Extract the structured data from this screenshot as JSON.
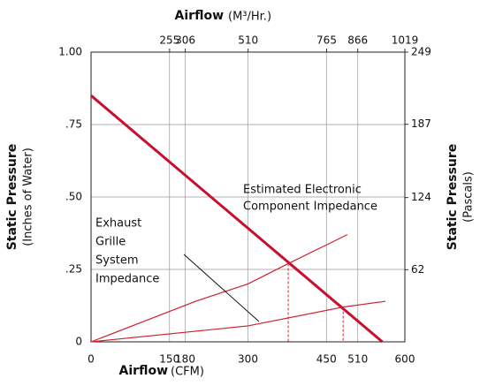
{
  "chart_data": {
    "type": "line",
    "xlabel": "Airflow",
    "xlabel_unit": "(CFM)",
    "x2label": "Airflow",
    "x2label_unit": "(M³/Hr.)",
    "ylabel": "Static Pressure",
    "ylabel_unit": "(Inches of Water)",
    "y2label": "Static Pressure",
    "y2label_unit": "(Pascals)",
    "xlim": [
      0,
      600
    ],
    "xticks": [
      0,
      150,
      180,
      300,
      450,
      510,
      600
    ],
    "x2lim": [
      0,
      1019
    ],
    "x2ticks": [
      255,
      306,
      510,
      765,
      866,
      1019
    ],
    "ylim": [
      0,
      1
    ],
    "yticks": [
      0,
      {
        "value": 0.25,
        "label": ".25"
      },
      {
        "value": 0.5,
        "label": ".50"
      },
      {
        "value": 0.75,
        "label": ".75"
      },
      {
        "value": 1,
        "label": "1.00"
      }
    ],
    "y2lim": [
      0,
      249
    ],
    "y2ticks": [
      62,
      124,
      187,
      249
    ],
    "grid": true,
    "series": [
      {
        "color": "#c8102e",
        "width": 3,
        "x": [
          0,
          557
        ],
        "values": [
          0.85,
          0
        ]
      },
      {
        "color": "#d0202e",
        "width": 1.2,
        "x": [
          0,
          100,
          200,
          300,
          377,
          490
        ],
        "values": [
          0,
          0.07,
          0.14,
          0.2,
          0.27,
          0.37
        ]
      },
      {
        "color": "#d0202e",
        "width": 1.2,
        "x": [
          0,
          300,
          482,
          563
        ],
        "values": [
          0,
          0.055,
          0.12,
          0.14
        ]
      }
    ],
    "operating_points": [
      {
        "x": 377,
        "y": 0.27
      },
      {
        "x": 482,
        "y": 0.12
      }
    ],
    "annotations": [
      {
        "lines": [
          "Estimated Electronic",
          "Component Impedance"
        ]
      },
      {
        "lines": [
          "Exhaust",
          "Grille",
          "System",
          "Impedance"
        ]
      }
    ]
  }
}
